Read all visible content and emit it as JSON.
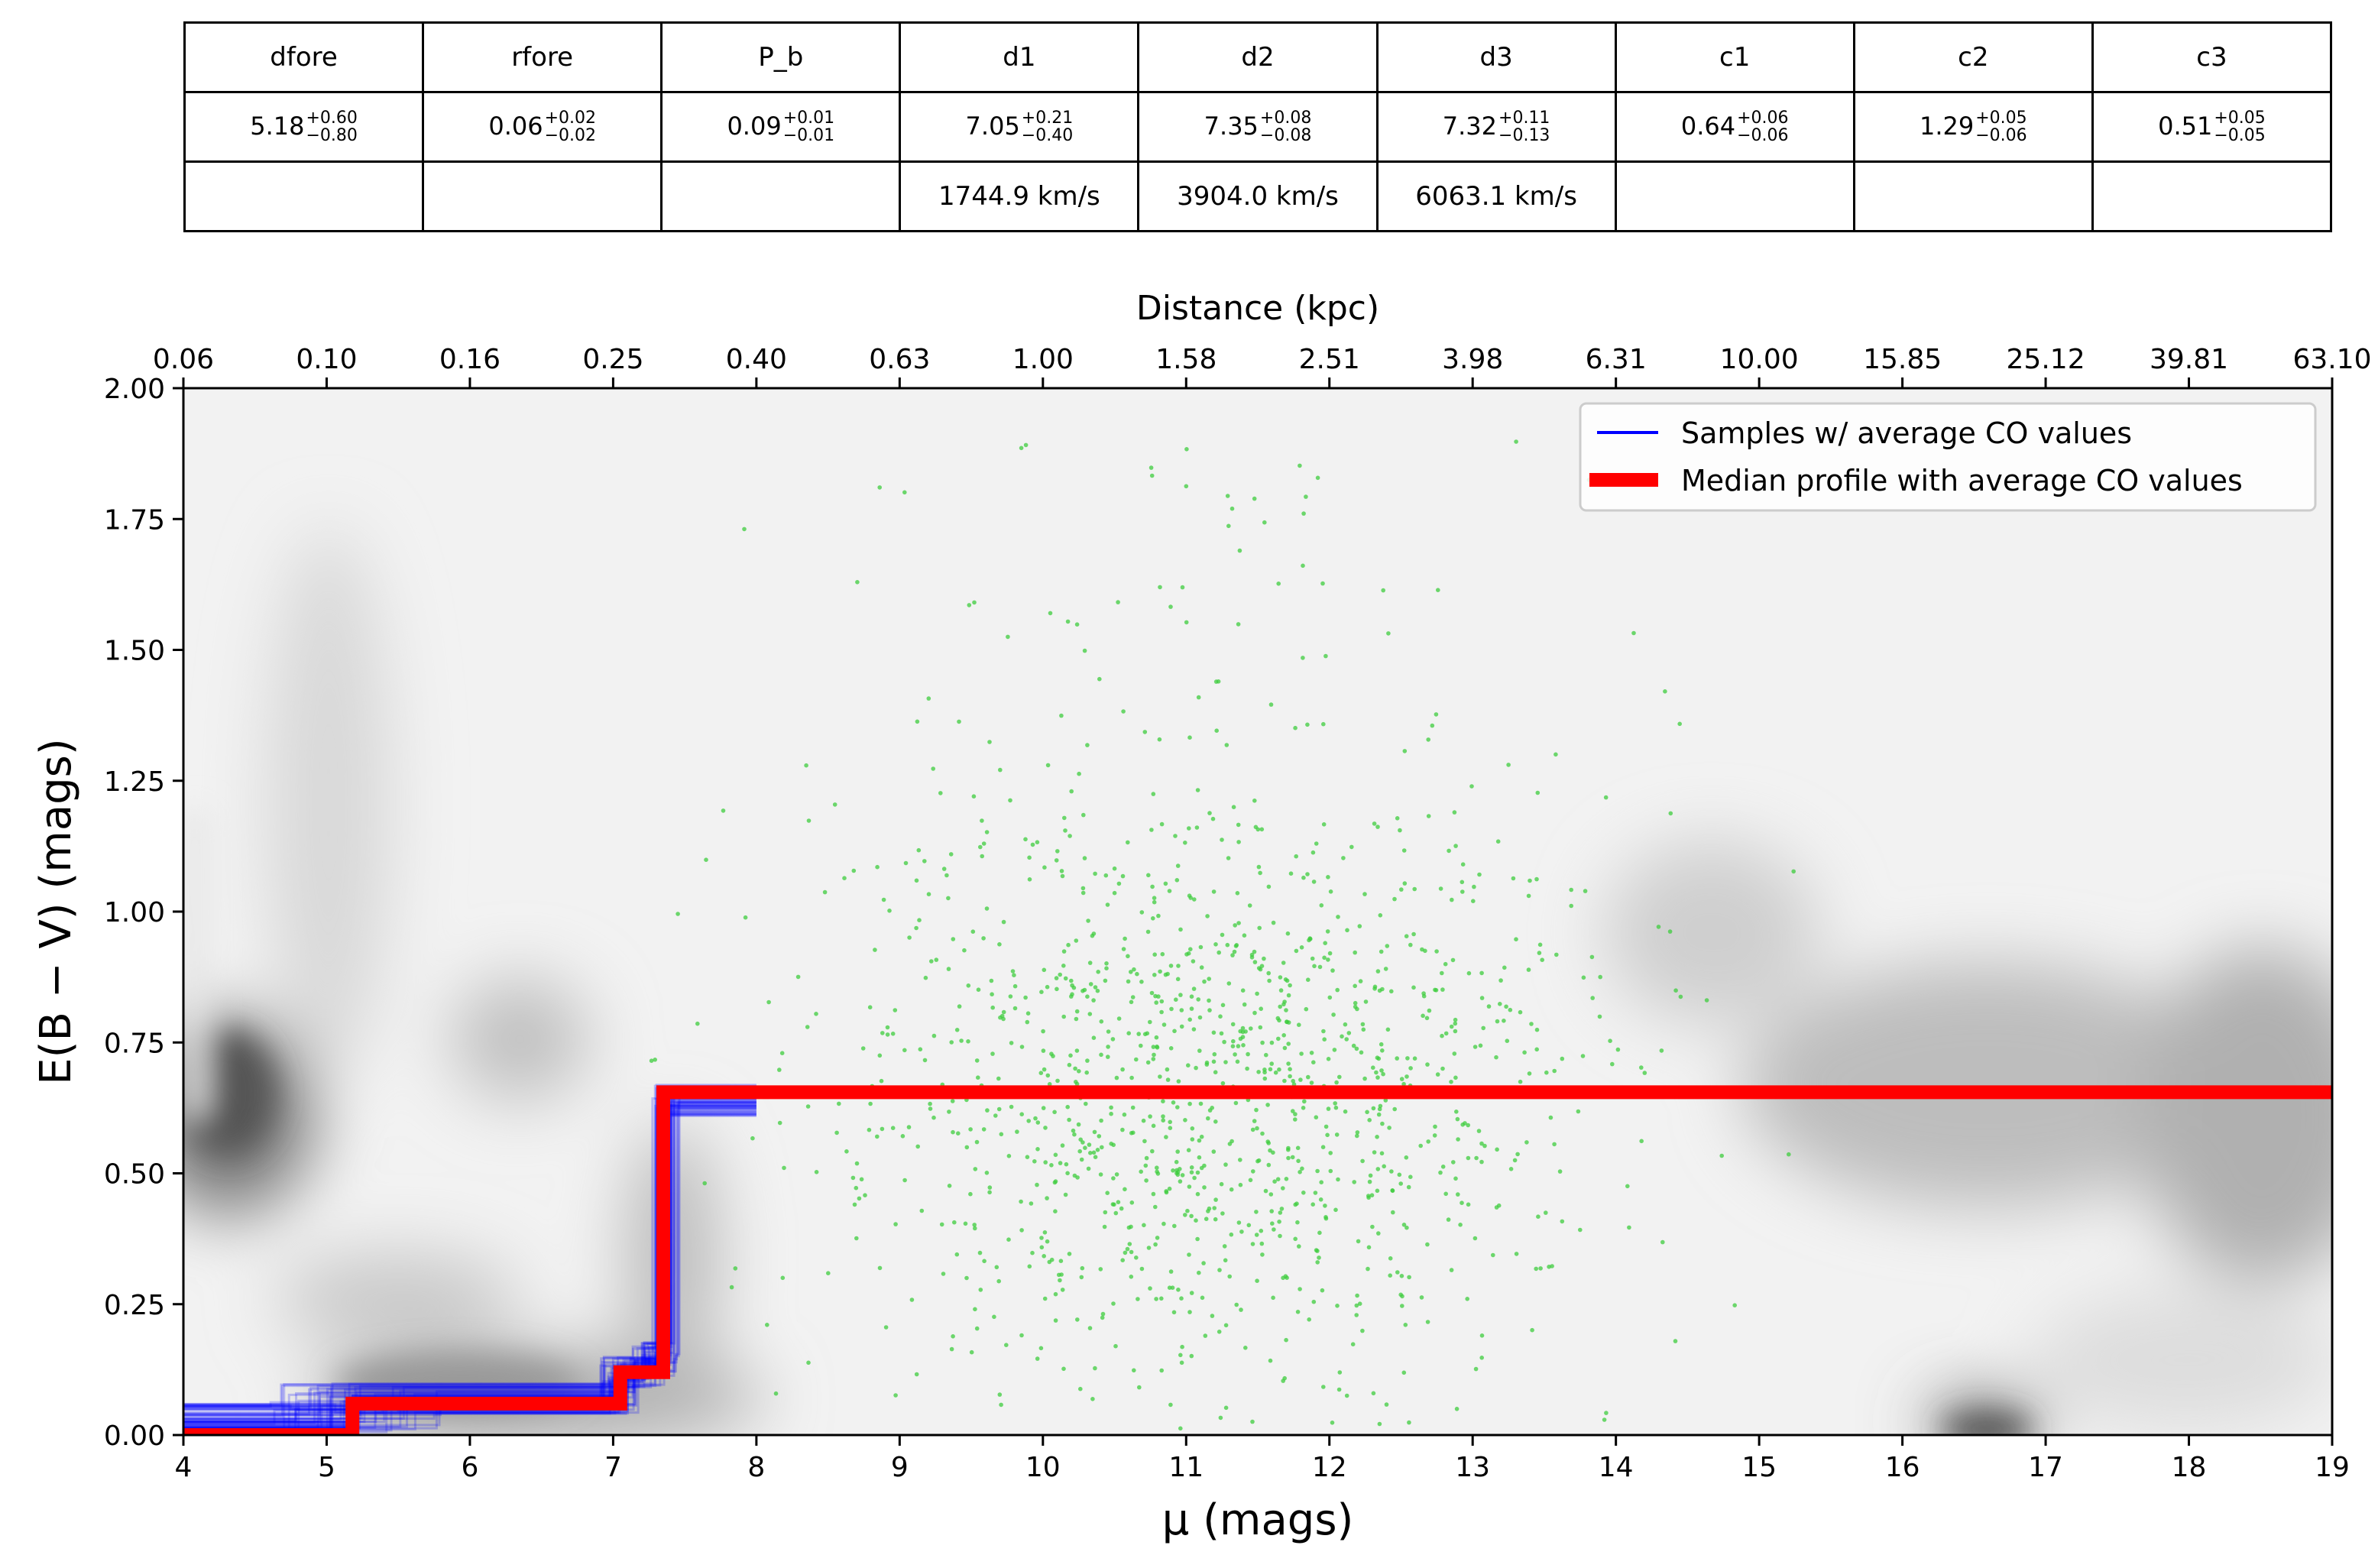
{
  "table": {
    "headers": [
      "dfore",
      "rfore",
      "P_b",
      "d1",
      "d2",
      "d3",
      "c1",
      "c2",
      "c3"
    ],
    "values": [
      {
        "base": "5.18",
        "up": "+0.60",
        "down": "−0.80"
      },
      {
        "base": "0.06",
        "up": "+0.02",
        "down": "−0.02"
      },
      {
        "base": "0.09",
        "up": "+0.01",
        "down": "−0.01"
      },
      {
        "base": "7.05",
        "up": "+0.21",
        "down": "−0.40"
      },
      {
        "base": "7.35",
        "up": "+0.08",
        "down": "−0.08"
      },
      {
        "base": "7.32",
        "up": "+0.11",
        "down": "−0.13"
      },
      {
        "base": "0.64",
        "up": "+0.06",
        "down": "−0.06"
      },
      {
        "base": "1.29",
        "up": "+0.05",
        "down": "−0.06"
      },
      {
        "base": "0.51",
        "up": "+0.05",
        "down": "−0.05"
      }
    ],
    "velocities": [
      "",
      "",
      "",
      "1744.9 km/s",
      "3904.0 km/s",
      "6063.1 km/s",
      "",
      "",
      ""
    ]
  },
  "chart_data": {
    "type": "line",
    "xlabel": "μ (mags)",
    "ylabel": "E(B − V) (mags)",
    "x2label": "Distance (kpc)",
    "xlim": [
      4,
      19
    ],
    "ylim": [
      0,
      2
    ],
    "xticks": [
      "4",
      "5",
      "6",
      "7",
      "8",
      "9",
      "10",
      "11",
      "12",
      "13",
      "14",
      "15",
      "16",
      "17",
      "18",
      "19"
    ],
    "yticks": [
      "0.00",
      "0.25",
      "0.50",
      "0.75",
      "1.00",
      "1.25",
      "1.50",
      "1.75",
      "2.00"
    ],
    "x2ticks": [
      "0.06",
      "0.10",
      "0.16",
      "0.25",
      "0.40",
      "0.63",
      "1.00",
      "1.58",
      "2.51",
      "3.98",
      "6.31",
      "10.00",
      "15.85",
      "25.12",
      "39.81",
      "63.10"
    ],
    "legend_position": "top-right",
    "series": [
      {
        "name": "Samples  w/ average CO values",
        "color": "#0000ff",
        "style": "thin-lines",
        "x": [
          4.0,
          5.2,
          5.2,
          7.05,
          7.05,
          7.25,
          7.25,
          7.35,
          7.35,
          19.0
        ],
        "y": [
          0.02,
          0.02,
          0.07,
          0.07,
          0.12,
          0.12,
          0.14,
          0.14,
          0.65,
          0.65
        ]
      },
      {
        "name": "Median profile with average CO values",
        "color": "#ff0000",
        "style": "thick-line",
        "x": [
          4.0,
          5.18,
          5.18,
          7.05,
          7.05,
          7.32,
          7.32,
          7.35,
          7.35,
          19.0
        ],
        "y": [
          0.0,
          0.0,
          0.06,
          0.06,
          0.12,
          0.12,
          0.12,
          0.12,
          0.655,
          0.655
        ]
      }
    ],
    "stars": {
      "color": "#3dcc3d",
      "x_center": 11.2,
      "x_spread": 1.35,
      "y_min": 0.0,
      "y_max": 2.0,
      "count": 1300
    }
  }
}
